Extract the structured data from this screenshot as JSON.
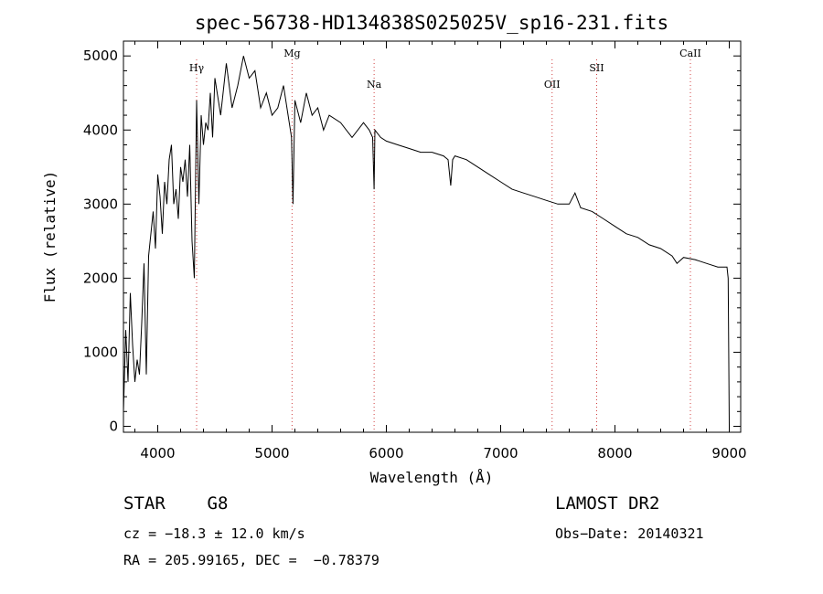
{
  "chart_data": {
    "type": "line",
    "title": "spec-56738-HD134838S025025V_sp16-231.fits",
    "xlabel": "Wavelength (Å)",
    "ylabel": "Flux (relative)",
    "xlim": [
      3700,
      9100
    ],
    "ylim": [
      -80,
      5200
    ],
    "xticks": [
      4000,
      5000,
      6000,
      7000,
      8000,
      9000
    ],
    "yticks": [
      0,
      1000,
      2000,
      3000,
      4000,
      5000
    ],
    "grid": false,
    "series": [
      {
        "x": [
          3700,
          3720,
          3740,
          3760,
          3780,
          3800,
          3820,
          3840,
          3860,
          3880,
          3900,
          3920,
          3940,
          3960,
          3980,
          4000,
          4020,
          4040,
          4060,
          4080,
          4100,
          4120,
          4140,
          4160,
          4180,
          4200,
          4220,
          4240,
          4260,
          4280,
          4300,
          4320,
          4340,
          4360,
          4380,
          4400,
          4420,
          4440,
          4460,
          4480,
          4500,
          4550,
          4600,
          4650,
          4700,
          4750,
          4800,
          4850,
          4900,
          4950,
          5000,
          5050,
          5100,
          5150,
          5170,
          5183,
          5200,
          5250,
          5300,
          5350,
          5400,
          5450,
          5500,
          5600,
          5700,
          5800,
          5850,
          5880,
          5893,
          5900,
          5950,
          6000,
          6100,
          6200,
          6300,
          6400,
          6500,
          6540,
          6563,
          6580,
          6600,
          6700,
          6800,
          6900,
          7000,
          7100,
          7200,
          7300,
          7400,
          7500,
          7600,
          7650,
          7700,
          7800,
          7900,
          8000,
          8100,
          8200,
          8300,
          8400,
          8500,
          8542,
          8600,
          8700,
          8800,
          8900,
          8980,
          8990,
          9000
        ],
        "values": [
          200,
          1300,
          600,
          1800,
          1100,
          600,
          900,
          700,
          1400,
          2200,
          700,
          2300,
          2600,
          2900,
          2400,
          3400,
          3100,
          2600,
          3300,
          3000,
          3600,
          3800,
          3000,
          3200,
          2800,
          3500,
          3300,
          3600,
          3100,
          3800,
          2500,
          2000,
          4400,
          3000,
          4200,
          3800,
          4100,
          4000,
          4500,
          3900,
          4700,
          4200,
          4900,
          4300,
          4600,
          5000,
          4700,
          4800,
          4300,
          4500,
          4200,
          4300,
          4600,
          4100,
          3900,
          3000,
          4400,
          4100,
          4500,
          4200,
          4300,
          4000,
          4200,
          4100,
          3900,
          4100,
          4000,
          3900,
          3200,
          4000,
          3900,
          3850,
          3800,
          3750,
          3700,
          3700,
          3650,
          3600,
          3250,
          3600,
          3650,
          3600,
          3500,
          3400,
          3300,
          3200,
          3150,
          3100,
          3050,
          3000,
          3000,
          3150,
          2950,
          2900,
          2800,
          2700,
          2600,
          2550,
          2450,
          2400,
          2300,
          2200,
          2280,
          2250,
          2200,
          2150,
          2150,
          2000,
          0
        ]
      }
    ],
    "lines": [
      {
        "label": "Hγ",
        "x": 4340
      },
      {
        "label": "Mg",
        "x": 5175
      },
      {
        "label": "Na",
        "x": 5893
      },
      {
        "label": "OII",
        "x": 7450
      },
      {
        "label": "SII",
        "x": 7840
      },
      {
        "label": "CaII",
        "x": 8660
      }
    ]
  },
  "info": {
    "class": "STAR    G8",
    "survey": "LAMOST DR2",
    "cz": "cz = −18.3 ± 12.0 km/s",
    "obsdate": "Obs−Date: 20140321",
    "radec": "RA = 205.99165, DEC =  −0.78379"
  }
}
